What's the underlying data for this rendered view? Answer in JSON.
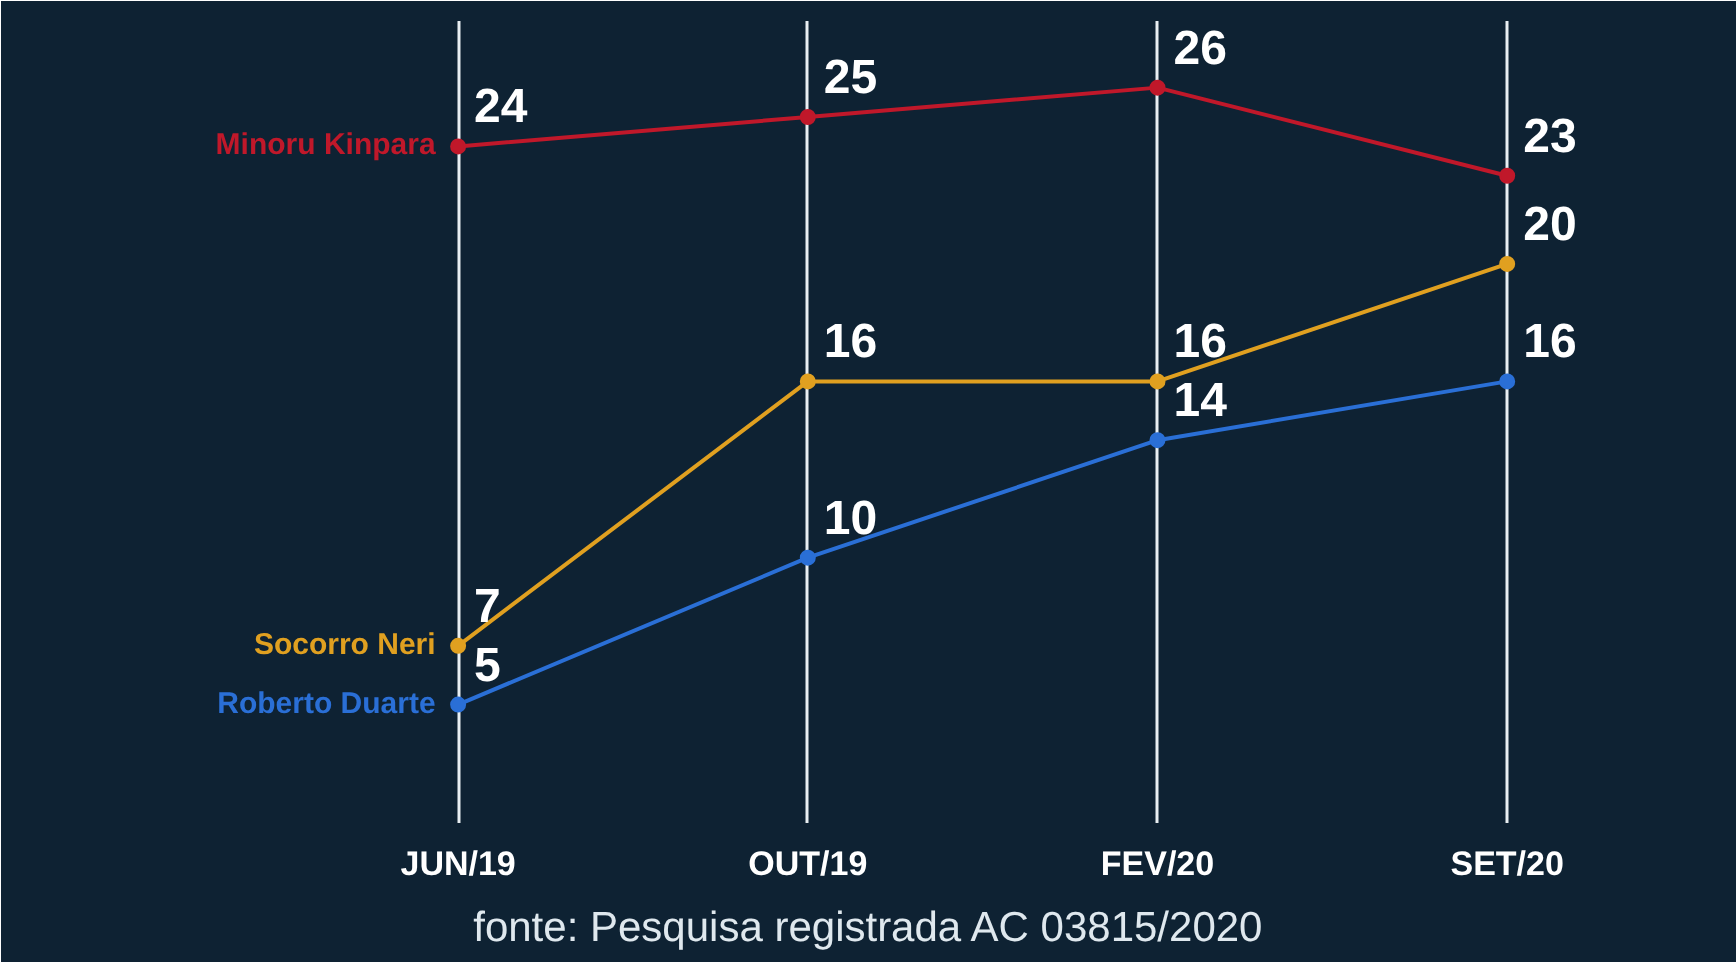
{
  "chart_data": {
    "type": "line",
    "categories": [
      "JUN/19",
      "OUT/19",
      "FEV/20",
      "SET/20"
    ],
    "series": [
      {
        "name": "Minoru Kinpara",
        "color": "#c0182a",
        "values": [
          24,
          25,
          26,
          23
        ]
      },
      {
        "name": "Socorro Neri",
        "color": "#e0a020",
        "values": [
          7,
          16,
          16,
          20
        ]
      },
      {
        "name": "Roberto Duarte",
        "color": "#2a6fd6",
        "values": [
          5,
          10,
          14,
          16
        ]
      }
    ],
    "data_labels": true,
    "grid": "x",
    "marker": "circle",
    "line_style": "solid",
    "legend": false,
    "annotations": [
      "fonte: Pesquisa registrada AC 03815/2020"
    ]
  }
}
